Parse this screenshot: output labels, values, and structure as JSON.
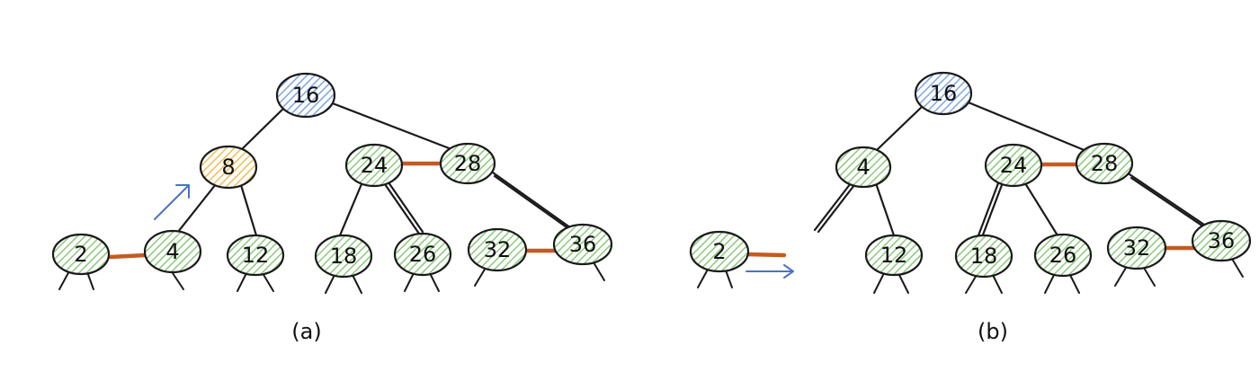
{
  "colors": {
    "green_node": "#a8d59a",
    "blue_node": "#9dbce8",
    "yellow_node": "#f3cd7a",
    "red_link": "#c55a22",
    "arrow_blue": "#4a74c4"
  },
  "panel_a": {
    "caption": "(a)",
    "root": {
      "label": "16",
      "color": "blue"
    },
    "highlighted": {
      "label": "8",
      "color": "yellow"
    },
    "nodes": [
      "16",
      "8",
      "24",
      "28",
      "2",
      "4",
      "12",
      "18",
      "26",
      "32",
      "36"
    ]
  },
  "panel_b": {
    "caption": "(b)",
    "root": {
      "label": "16",
      "color": "blue"
    },
    "nodes": [
      "16",
      "4",
      "24",
      "28",
      "2",
      "12",
      "18",
      "26",
      "32",
      "36"
    ]
  }
}
